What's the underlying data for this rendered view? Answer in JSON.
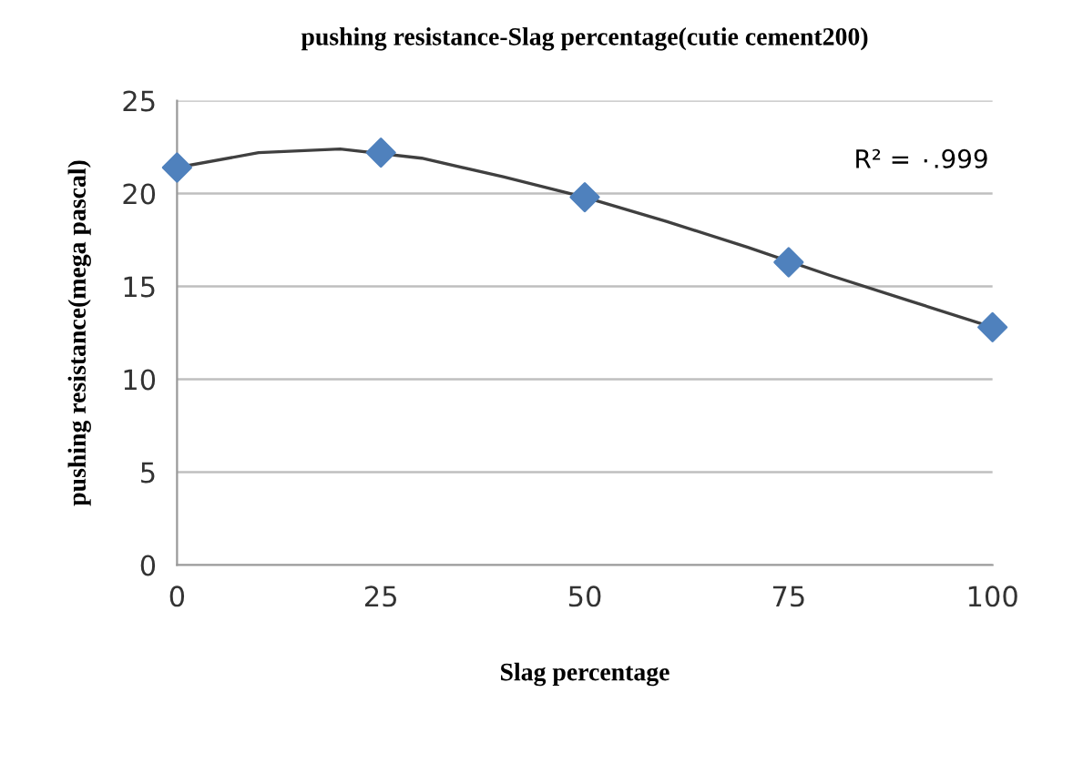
{
  "chart_data": {
    "type": "scatter",
    "title": "pushing resistance-Slag percentage(cutie cement200)",
    "xlabel": "Slag percentage",
    "ylabel": "pushing resistance(mega pascal)",
    "x": [
      0,
      25,
      50,
      75,
      100
    ],
    "series": [
      {
        "color": "#4f81bd",
        "marker": "diamond",
        "values": [
          21.4,
          22.2,
          19.8,
          16.3,
          12.8
        ]
      },
      {
        "type": "line",
        "color": "#404040",
        "marker": "none",
        "x": [
          0,
          10,
          20,
          30,
          40,
          50,
          60,
          70,
          80,
          90,
          100
        ],
        "values": [
          21.4,
          22.2,
          22.4,
          21.9,
          20.9,
          19.8,
          18.5,
          17.1,
          15.6,
          14.2,
          12.8
        ]
      }
    ],
    "annotations": [
      "R² = ٠.999"
    ],
    "xlim": [
      0,
      100
    ],
    "xticks": [
      0,
      25,
      50,
      75,
      100
    ],
    "ylim": [
      0,
      25
    ],
    "yticks": [
      0,
      5,
      10,
      15,
      20,
      25
    ],
    "grid": "y",
    "legend": false
  }
}
